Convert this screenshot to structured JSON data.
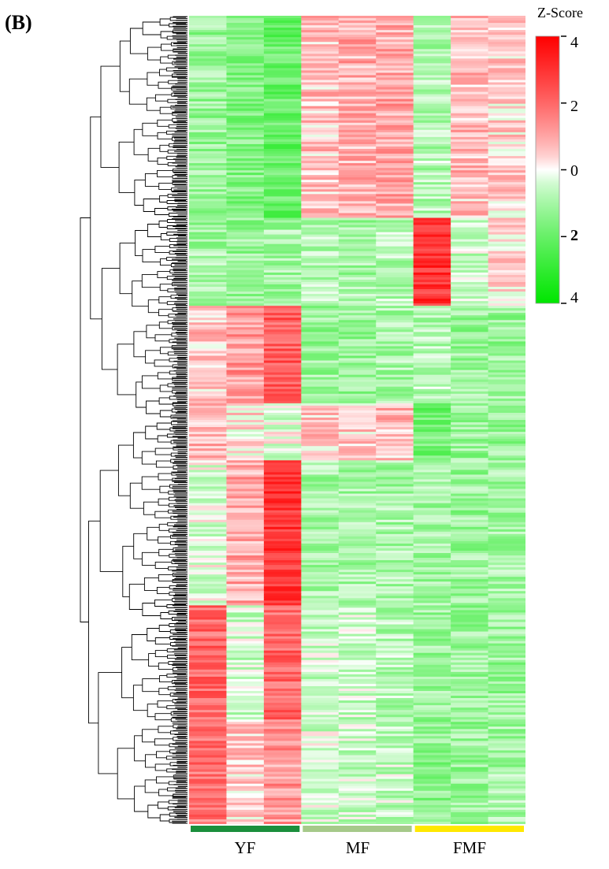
{
  "panel_label": "(B)",
  "colorbar": {
    "title": "Z-Score",
    "ticks": [
      {
        "value": 4,
        "label": "4"
      },
      {
        "value": 2,
        "label": "2"
      },
      {
        "value": 0,
        "label": "0"
      },
      {
        "value": -2,
        "label": "2"
      },
      {
        "value": -4,
        "label": "4"
      }
    ],
    "range": [
      -4,
      4
    ],
    "colors": {
      "high": "#ff0000",
      "mid": "#ffffff",
      "low": "#00e600"
    }
  },
  "groups": [
    {
      "name": "YF",
      "color": "#1a8f3c"
    },
    {
      "name": "MF",
      "color": "#a6c98a"
    },
    {
      "name": "FMF",
      "color": "#ffe800"
    }
  ],
  "chart_data": {
    "type": "heatmap",
    "title": "",
    "xlabel": "",
    "ylabel": "",
    "columns_per_group": 3,
    "clustered": true,
    "color_scale": "green-white-red",
    "zlim": [
      -4,
      4
    ],
    "groups": [
      "YF",
      "MF",
      "FMF"
    ],
    "row_block_fraction": [
      0.25,
      0.11,
      0.12,
      0.07,
      0.18,
      0.14,
      0.13
    ],
    "block_values": [
      [
        -1.2,
        -1.5,
        -2.0,
        0.6,
        0.9,
        1.0,
        -0.8,
        0.7,
        0.4
      ],
      [
        -1.0,
        -1.2,
        -1.0,
        -0.8,
        -1.0,
        -0.8,
        3.0,
        -0.6,
        0.3
      ],
      [
        0.6,
        1.2,
        2.2,
        -1.2,
        -1.2,
        -1.0,
        -0.8,
        -1.2,
        -1.2
      ],
      [
        0.8,
        0.3,
        -0.2,
        0.5,
        0.5,
        0.7,
        -1.8,
        -1.2,
        -1.2
      ],
      [
        -0.3,
        1.0,
        3.0,
        -1.0,
        -1.0,
        -1.0,
        -1.0,
        -1.2,
        -1.1
      ],
      [
        2.0,
        -0.5,
        2.0,
        -0.6,
        -0.6,
        -0.8,
        -1.2,
        -1.2,
        -1.2
      ],
      [
        1.8,
        0.5,
        1.2,
        -0.4,
        -0.6,
        -0.6,
        -1.4,
        -1.2,
        -1.0
      ]
    ]
  }
}
